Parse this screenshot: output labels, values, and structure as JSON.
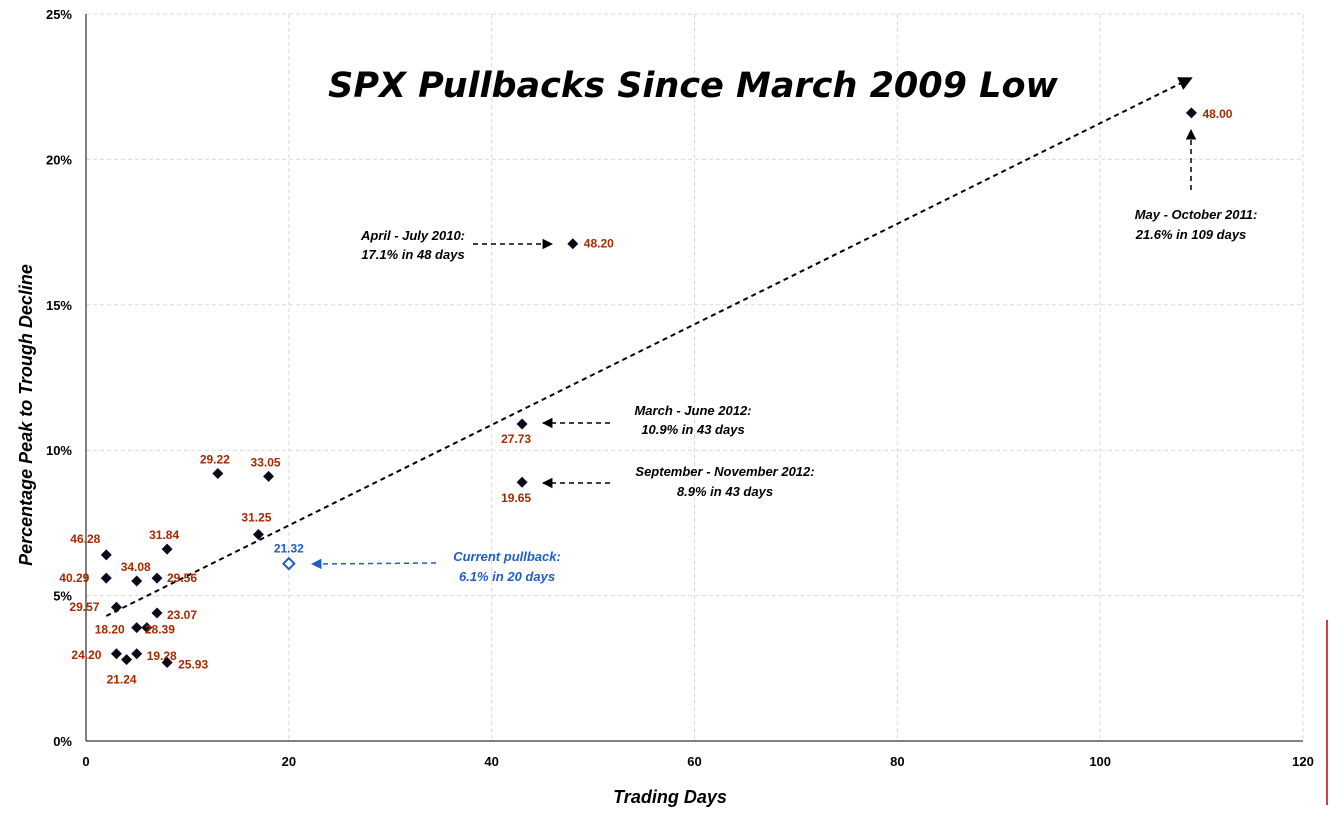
{
  "chart_data": {
    "type": "scatter",
    "title": "SPX Pullbacks Since March 2009 Low",
    "xlabel": "Trading Days",
    "ylabel": "Percentage Peak to Trough Decline",
    "xlim": [
      0,
      120
    ],
    "ylim": [
      0,
      25
    ],
    "xticks": [
      "0",
      "20",
      "40",
      "60",
      "80",
      "100",
      "120"
    ],
    "yticks": [
      "0%",
      "5%",
      "10%",
      "15%",
      "20%",
      "25%"
    ],
    "grid": true,
    "trendline": {
      "style": "dashed",
      "from": [
        2,
        4.3
      ],
      "to": [
        109,
        22.8
      ]
    },
    "points": [
      {
        "x": 2,
        "y": 6.4,
        "label": "46.28"
      },
      {
        "x": 2,
        "y": 5.6,
        "label": "40.29"
      },
      {
        "x": 3,
        "y": 4.6,
        "label": "29.57"
      },
      {
        "x": 3,
        "y": 3.0,
        "label": "24.20"
      },
      {
        "x": 4,
        "y": 2.8,
        "label": "21.24"
      },
      {
        "x": 5,
        "y": 5.5,
        "label": "34.08"
      },
      {
        "x": 5,
        "y": 3.9,
        "label": "18.20"
      },
      {
        "x": 5,
        "y": 3.0,
        "label": "19.28"
      },
      {
        "x": 6,
        "y": 3.9,
        "label": "28.39"
      },
      {
        "x": 7,
        "y": 5.6,
        "label": "29.56"
      },
      {
        "x": 7,
        "y": 4.4,
        "label": "23.07"
      },
      {
        "x": 8,
        "y": 6.6,
        "label": "31.84"
      },
      {
        "x": 8,
        "y": 2.7,
        "label": "25.93"
      },
      {
        "x": 13,
        "y": 9.2,
        "label": "29.22"
      },
      {
        "x": 17,
        "y": 7.1,
        "label": "31.25"
      },
      {
        "x": 18,
        "y": 9.1,
        "label": "33.05"
      },
      {
        "x": 43,
        "y": 10.9,
        "label": "27.73"
      },
      {
        "x": 43,
        "y": 8.9,
        "label": "19.65"
      },
      {
        "x": 48,
        "y": 17.1,
        "label": "48.20"
      },
      {
        "x": 109,
        "y": 21.6,
        "label": "48.00"
      }
    ],
    "current": {
      "x": 20,
      "y": 6.1,
      "label": "21.32"
    },
    "annotations": [
      {
        "lines": [
          "April - July 2010:",
          "17.1% in 48 days"
        ],
        "color": "#000000"
      },
      {
        "lines": [
          "May - October 2011:",
          "21.6% in 109 days"
        ],
        "color": "#000000"
      },
      {
        "lines": [
          "March - June 2012:",
          "10.9% in 43 days"
        ],
        "color": "#000000"
      },
      {
        "lines": [
          "September - November 2012:",
          "8.9% in 43 days"
        ],
        "color": "#000000"
      },
      {
        "lines": [
          "Current pullback:",
          "6.1% in 20 days"
        ],
        "color": "#1f5fbf"
      }
    ],
    "colors": {
      "marker": "#0a0a1a",
      "label": "#a52a00",
      "current": "#1f5fbf"
    }
  }
}
